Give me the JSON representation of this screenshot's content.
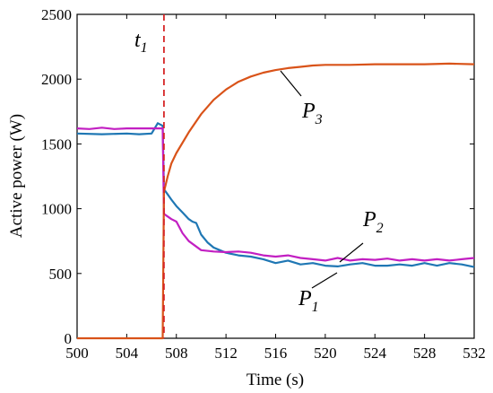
{
  "chart_data": {
    "type": "line",
    "xlabel": "Time (s)",
    "ylabel": "Active power (W)",
    "xlim": [
      500,
      532
    ],
    "ylim": [
      0,
      2500
    ],
    "xticks": [
      500,
      504,
      508,
      512,
      516,
      520,
      524,
      528,
      532
    ],
    "yticks": [
      0,
      500,
      1000,
      1500,
      2000,
      2500
    ],
    "grid": false,
    "legend": "none",
    "event_line": {
      "x": 507,
      "label": "t",
      "label_sub": "1",
      "color": "#d62728"
    },
    "series": [
      {
        "name": "P1",
        "color": "#1f77b4",
        "x": [
          500,
          502,
          504,
          505,
          506,
          506.5,
          506.9,
          507.0,
          507.3,
          507.6,
          508,
          508.5,
          509,
          509.3,
          509.6,
          510,
          510.5,
          511,
          511.5,
          512,
          513,
          514,
          515,
          516,
          517,
          518,
          519,
          520,
          521,
          522,
          523,
          524,
          525,
          526,
          527,
          528,
          529,
          530,
          531,
          532
        ],
        "y": [
          1580,
          1575,
          1580,
          1575,
          1580,
          1660,
          1640,
          1150,
          1110,
          1070,
          1020,
          970,
          920,
          900,
          890,
          800,
          740,
          700,
          680,
          660,
          640,
          630,
          610,
          580,
          600,
          570,
          580,
          560,
          555,
          570,
          580,
          560,
          560,
          570,
          560,
          580,
          560,
          580,
          570,
          550
        ]
      },
      {
        "name": "P2",
        "color": "#c21fc2",
        "x": [
          500,
          501,
          502,
          503,
          504,
          505,
          506,
          506.9,
          507.0,
          507.3,
          507.6,
          508,
          508.5,
          509,
          510,
          511,
          512,
          513,
          514,
          515,
          516,
          517,
          518,
          519,
          520,
          521,
          522,
          523,
          524,
          525,
          526,
          527,
          528,
          529,
          530,
          531,
          532
        ],
        "y": [
          1620,
          1615,
          1625,
          1615,
          1620,
          1620,
          1620,
          1620,
          960,
          940,
          920,
          900,
          810,
          750,
          680,
          670,
          665,
          670,
          660,
          640,
          630,
          640,
          620,
          610,
          600,
          620,
          600,
          610,
          605,
          615,
          600,
          610,
          600,
          610,
          600,
          610,
          620
        ]
      },
      {
        "name": "P3",
        "color": "#d95319",
        "x": [
          500,
          506.9,
          507.0,
          507.3,
          507.6,
          508,
          509,
          510,
          511,
          512,
          513,
          514,
          515,
          516,
          517,
          518,
          519,
          520,
          522,
          524,
          526,
          528,
          530,
          532
        ],
        "y": [
          0,
          0,
          1130,
          1250,
          1350,
          1430,
          1590,
          1730,
          1840,
          1920,
          1980,
          2020,
          2050,
          2070,
          2085,
          2095,
          2105,
          2110,
          2110,
          2115,
          2115,
          2115,
          2120,
          2115
        ]
      }
    ],
    "annotations": [
      {
        "text": "P",
        "sub": "3",
        "series": "P3"
      },
      {
        "text": "P",
        "sub": "2",
        "series": "P2"
      },
      {
        "text": "P",
        "sub": "1",
        "series": "P1"
      }
    ]
  }
}
